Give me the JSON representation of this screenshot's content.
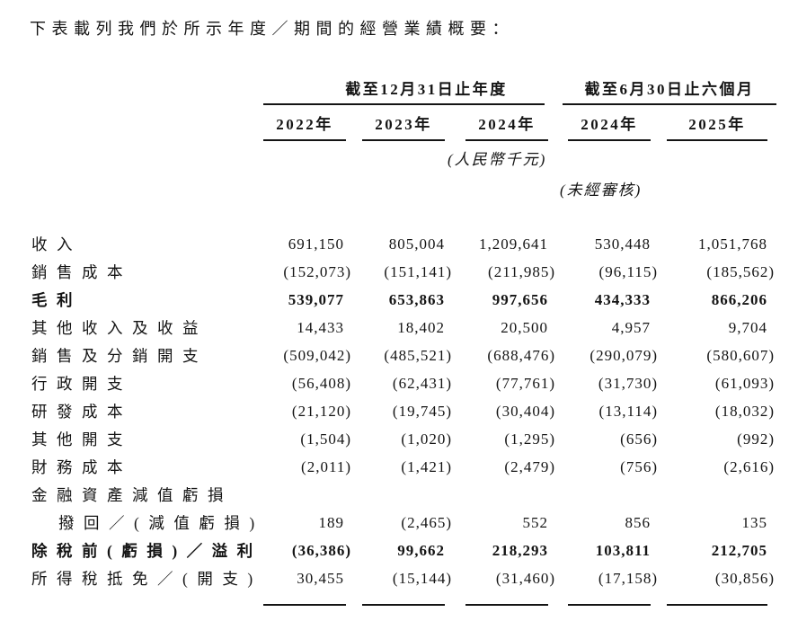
{
  "intro": "下表載列我們於所示年度／期間的經營業績概要：",
  "table": {
    "column_groups": [
      {
        "label": "截至12月31日止年度",
        "span": 3
      },
      {
        "label": "截至6月30日止六個月",
        "span": 2
      }
    ],
    "year_headers": [
      "2022年",
      "2023年",
      "2024年",
      "2024年",
      "2025年"
    ],
    "unit_note": "(人民幣千元)",
    "audit_note": "(未經審核)",
    "rows": [
      {
        "label": "收入",
        "values": [
          "691,150",
          "805,004",
          "1,209,641",
          "530,448",
          "1,051,768"
        ]
      },
      {
        "label": "銷售成本",
        "values": [
          "(152,073)",
          "(151,141)",
          "(211,985)",
          "(96,115)",
          "(185,562)"
        ]
      },
      {
        "label": "毛利",
        "bold": true,
        "values": [
          "539,077",
          "653,863",
          "997,656",
          "434,333",
          "866,206"
        ]
      },
      {
        "label": "其他收入及收益",
        "values": [
          "14,433",
          "18,402",
          "20,500",
          "4,957",
          "9,704"
        ]
      },
      {
        "label": "銷售及分銷開支",
        "values": [
          "(509,042)",
          "(485,521)",
          "(688,476)",
          "(290,079)",
          "(580,607)"
        ]
      },
      {
        "label": "行政開支",
        "values": [
          "(56,408)",
          "(62,431)",
          "(77,761)",
          "(31,730)",
          "(61,093)"
        ]
      },
      {
        "label": "研發成本",
        "values": [
          "(21,120)",
          "(19,745)",
          "(30,404)",
          "(13,114)",
          "(18,032)"
        ]
      },
      {
        "label": "其他開支",
        "values": [
          "(1,504)",
          "(1,020)",
          "(1,295)",
          "(656)",
          "(992)"
        ]
      },
      {
        "label": "財務成本",
        "values": [
          "(2,011)",
          "(1,421)",
          "(2,479)",
          "(756)",
          "(2,616)"
        ]
      },
      {
        "label": "金融資產減值虧損",
        "values": []
      },
      {
        "label": "撥回／(減值虧損)",
        "indent": true,
        "values": [
          "189",
          "(2,465)",
          "552",
          "856",
          "135"
        ]
      },
      {
        "label": "除稅前(虧損)／溢利",
        "bold": true,
        "values": [
          "(36,386)",
          "99,662",
          "218,293",
          "103,811",
          "212,705"
        ]
      },
      {
        "label": "所得稅抵免／(開支)",
        "values": [
          "30,455",
          "(15,144)",
          "(31,460)",
          "(17,158)",
          "(30,856)"
        ],
        "rule_below": true
      }
    ]
  }
}
